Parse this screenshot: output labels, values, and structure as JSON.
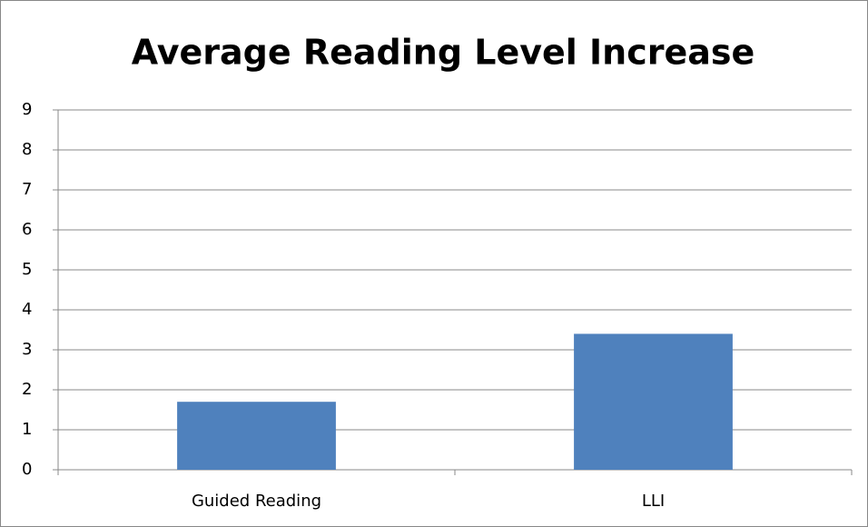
{
  "chart_data": {
    "type": "bar",
    "title": "Average Reading Level Increase",
    "categories": [
      "Guided Reading",
      "LLI"
    ],
    "values": [
      1.7,
      3.4
    ],
    "color": "#4f81bd",
    "ylim": [
      0,
      9
    ],
    "yticks": [
      0,
      1,
      2,
      3,
      4,
      5,
      6,
      7,
      8,
      9
    ],
    "grid": true
  }
}
